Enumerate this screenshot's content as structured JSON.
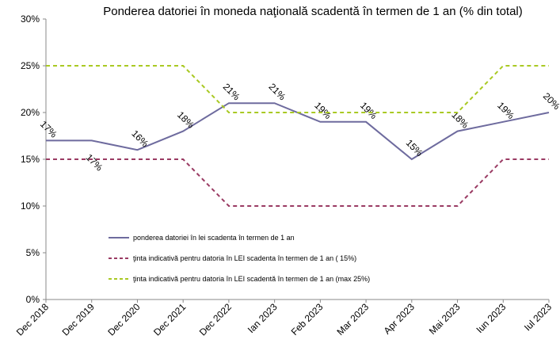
{
  "chart_data": {
    "type": "line",
    "title": "Ponderea datoriei în moneda naţională scadentă în termen de 1 an (% din total)",
    "categories": [
      "Dec 2018",
      "Dec 2019",
      "Dec 2020",
      "Dec 2021",
      "Dec 2022",
      "Ian 2023",
      "Feb 2023",
      "Mar 2023",
      "Apr 2023",
      "Mai 2023",
      "Iun 2023",
      "Iul 2023"
    ],
    "series": [
      {
        "name": "ponderea datoriei în lei scadenta în termen de 1 an",
        "color": "#6e6b9e",
        "dash": false,
        "values": [
          17,
          17,
          16,
          18,
          21,
          21,
          19,
          19,
          15,
          18,
          19,
          20
        ],
        "value_labels": [
          "17%",
          "17%",
          "16%",
          "18%",
          "21%",
          "21%",
          "19%",
          "19%",
          "15%",
          "18%",
          "19%",
          "20%"
        ]
      },
      {
        "name": "ţinta indicativă pentru datoria în LEI scadenta în termen de  1 an ( 15%)",
        "color": "#9a3b63",
        "dash": true,
        "values": [
          15,
          15,
          15,
          15,
          10,
          10,
          10,
          10,
          10,
          10,
          15,
          15
        ]
      },
      {
        "name": "ţinta indicativă pentru datoria în LEI scadentă în termen de  1 an (max 25%)",
        "color": "#a9c923",
        "dash": true,
        "values": [
          25,
          25,
          25,
          25,
          20,
          20,
          20,
          20,
          20,
          20,
          25,
          25
        ]
      }
    ],
    "ylim": [
      0,
      30
    ],
    "yticks": [
      {
        "value": 0,
        "label": "0%"
      },
      {
        "value": 5,
        "label": "5%"
      },
      {
        "value": 10,
        "label": "10%"
      },
      {
        "value": 15,
        "label": "15%"
      },
      {
        "value": 20,
        "label": "20%"
      },
      {
        "value": 25,
        "label": "25%"
      },
      {
        "value": 30,
        "label": "30%"
      }
    ],
    "grid": false
  }
}
